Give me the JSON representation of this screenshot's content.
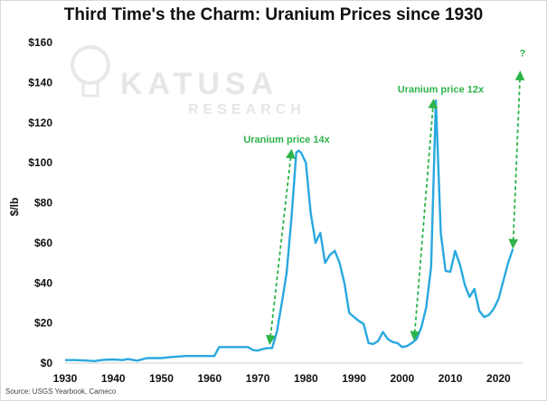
{
  "chart_data": {
    "type": "line",
    "title": "Third Time's the Charm: Uranium Prices since 1930",
    "xlabel": "",
    "ylabel": "$/lb",
    "xlim": [
      1930,
      2025
    ],
    "ylim": [
      0,
      160
    ],
    "x_ticks": [
      1930,
      1940,
      1950,
      1960,
      1970,
      1980,
      1990,
      2000,
      2010,
      2020
    ],
    "y_ticks": [
      "$0",
      "$20",
      "$40",
      "$60",
      "$80",
      "$100",
      "$120",
      "$140",
      "$160"
    ],
    "grid": false,
    "legend": "none",
    "series": [
      {
        "color": "#29a8e0",
        "points": [
          [
            1930,
            1.5
          ],
          [
            1932,
            1.5
          ],
          [
            1934,
            1.3
          ],
          [
            1936,
            1.0
          ],
          [
            1938,
            1.6
          ],
          [
            1940,
            1.8
          ],
          [
            1942,
            1.5
          ],
          [
            1943,
            2.0
          ],
          [
            1945,
            1.2
          ],
          [
            1947,
            2.5
          ],
          [
            1950,
            2.5
          ],
          [
            1952,
            3.0
          ],
          [
            1955,
            3.5
          ],
          [
            1958,
            3.5
          ],
          [
            1961,
            3.5
          ],
          [
            1962,
            8.0
          ],
          [
            1965,
            8.0
          ],
          [
            1968,
            8.0
          ],
          [
            1969,
            6.5
          ],
          [
            1970,
            6.2
          ],
          [
            1971,
            7.0
          ],
          [
            1972,
            7.5
          ],
          [
            1973,
            7.5
          ],
          [
            1974,
            16.0
          ],
          [
            1975,
            30.0
          ],
          [
            1976,
            45.0
          ],
          [
            1977,
            72.0
          ],
          [
            1978,
            105.0
          ],
          [
            1978.5,
            106.0
          ],
          [
            1979,
            105.0
          ],
          [
            1980,
            100.0
          ],
          [
            1981,
            75.0
          ],
          [
            1982,
            60.0
          ],
          [
            1983,
            65.0
          ],
          [
            1984,
            50.0
          ],
          [
            1985,
            54.0
          ],
          [
            1986,
            56.0
          ],
          [
            1987,
            50.0
          ],
          [
            1988,
            40.0
          ],
          [
            1989,
            25.0
          ],
          [
            1990,
            23.0
          ],
          [
            1991,
            21.0
          ],
          [
            1992,
            19.5
          ],
          [
            1993,
            10.0
          ],
          [
            1994,
            9.5
          ],
          [
            1995,
            11.0
          ],
          [
            1996,
            15.5
          ],
          [
            1997,
            12.0
          ],
          [
            1998,
            10.5
          ],
          [
            1999,
            10.0
          ],
          [
            2000,
            8.0
          ],
          [
            2001,
            8.5
          ],
          [
            2002,
            10.0
          ],
          [
            2003,
            12.0
          ],
          [
            2004,
            18.0
          ],
          [
            2005,
            28.0
          ],
          [
            2006,
            48.0
          ],
          [
            2007,
            131.0
          ],
          [
            2008,
            65.0
          ],
          [
            2009,
            46.0
          ],
          [
            2010,
            45.5
          ],
          [
            2011,
            56.0
          ],
          [
            2012,
            49.0
          ],
          [
            2013,
            39.0
          ],
          [
            2014,
            33.0
          ],
          [
            2015,
            37.0
          ],
          [
            2016,
            26.0
          ],
          [
            2017,
            23.0
          ],
          [
            2018,
            24.0
          ],
          [
            2019,
            27.0
          ],
          [
            2020,
            32.0
          ],
          [
            2021,
            41.0
          ],
          [
            2022,
            50.0
          ],
          [
            2023,
            57.0
          ]
        ]
      }
    ],
    "annotations": [
      {
        "text": "Uranium price 14x",
        "x": 1976,
        "y": 110,
        "arrow_from": [
          1972.5,
          10
        ],
        "arrow_to": [
          1977,
          106
        ]
      },
      {
        "text": "Uranium price 12x",
        "x": 2008,
        "y": 135,
        "arrow_from": [
          2002.5,
          12
        ],
        "arrow_to": [
          2006.5,
          131
        ]
      },
      {
        "text": "?",
        "x": 2025,
        "y": 153,
        "arrow_from": [
          2023,
          58
        ],
        "arrow_to": [
          2024.5,
          145
        ]
      }
    ],
    "annotation_color": "#2db34a"
  },
  "watermark": {
    "line1": "KATUSA",
    "line2": "RESEARCH"
  },
  "source": "Source: USGS Yearbook, Cameco"
}
